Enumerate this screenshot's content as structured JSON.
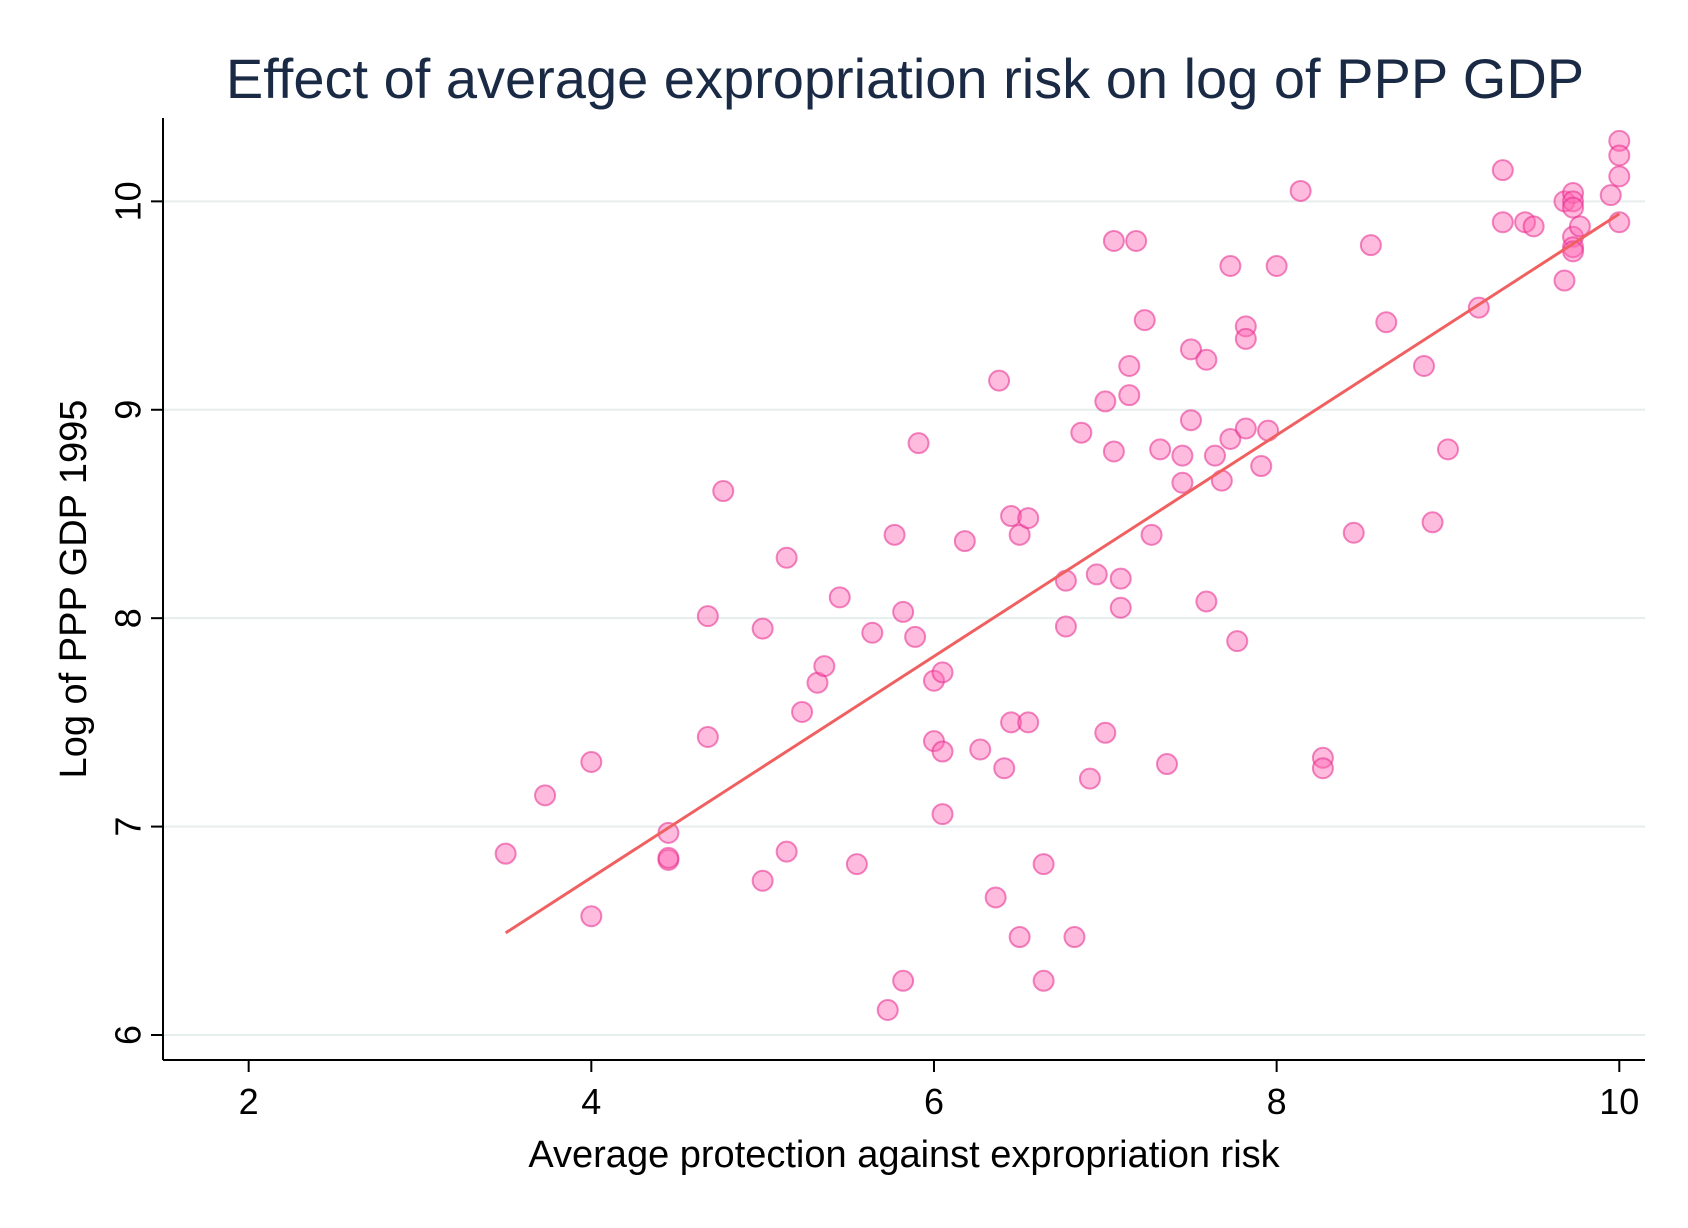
{
  "chart_data": {
    "type": "scatter",
    "title": "Effect of average expropriation risk on log of PPP GDP",
    "xlabel": "Average protection against expropriation risk",
    "ylabel": "Log of PPP GDP 1995",
    "xlim": [
      1.5,
      10.15
    ],
    "ylim": [
      5.88,
      10.4
    ],
    "xticks": [
      "2",
      "4",
      "6",
      "8",
      "10"
    ],
    "yticks": [
      "6",
      "7",
      "8",
      "9",
      "10"
    ],
    "grid": true,
    "colors": {
      "point": "#ff69b4",
      "fit": "#f06060"
    },
    "fit_line": {
      "x": [
        3.5,
        10.0
      ],
      "y": [
        6.49,
        9.94
      ]
    },
    "points": {
      "x": [
        3.5,
        3.73,
        4.0,
        4.0,
        4.45,
        4.45,
        4.45,
        4.68,
        4.68,
        4.77,
        5.0,
        5.0,
        5.14,
        5.14,
        5.23,
        5.32,
        5.36,
        5.45,
        5.55,
        5.64,
        5.73,
        5.77,
        5.82,
        5.82,
        5.89,
        5.91,
        6.0,
        6.0,
        6.05,
        6.05,
        6.05,
        6.18,
        6.27,
        6.36,
        6.38,
        6.41,
        6.45,
        6.45,
        6.5,
        6.5,
        6.55,
        6.55,
        6.64,
        6.64,
        6.77,
        6.77,
        6.82,
        6.86,
        6.91,
        6.95,
        7.0,
        7.0,
        7.05,
        7.05,
        7.09,
        7.09,
        7.14,
        7.14,
        7.18,
        7.23,
        7.27,
        7.32,
        7.36,
        7.45,
        7.45,
        7.5,
        7.5,
        7.59,
        7.59,
        7.64,
        7.68,
        7.73,
        7.73,
        7.77,
        7.82,
        7.82,
        7.82,
        7.91,
        7.95,
        8.0,
        8.14,
        8.27,
        8.27,
        8.45,
        8.55,
        8.64,
        8.86,
        8.91,
        9.0,
        9.18,
        9.32,
        9.32,
        9.45,
        9.5,
        9.68,
        9.68,
        9.73,
        9.73,
        9.73,
        9.73,
        9.73,
        9.73,
        9.77,
        9.95,
        10.0,
        10.0,
        10.0,
        10.0
      ],
      "y": [
        6.87,
        7.15,
        7.31,
        6.57,
        6.97,
        6.84,
        6.85,
        8.01,
        7.43,
        8.61,
        7.95,
        6.74,
        8.29,
        6.88,
        7.55,
        7.69,
        7.77,
        8.1,
        6.82,
        7.93,
        6.12,
        8.4,
        8.03,
        6.26,
        7.91,
        8.84,
        7.7,
        7.41,
        7.74,
        7.36,
        7.06,
        8.37,
        7.37,
        6.66,
        9.14,
        7.28,
        8.49,
        7.5,
        8.4,
        6.47,
        8.48,
        7.5,
        6.82,
        6.26,
        8.18,
        7.96,
        6.47,
        8.89,
        7.23,
        8.21,
        9.04,
        7.45,
        9.81,
        8.8,
        8.19,
        8.05,
        9.21,
        9.07,
        9.81,
        9.43,
        8.4,
        8.81,
        7.3,
        8.78,
        8.65,
        9.29,
        8.95,
        9.24,
        8.08,
        8.78,
        8.66,
        9.69,
        8.86,
        7.89,
        9.4,
        9.34,
        8.91,
        8.73,
        8.9,
        9.69,
        10.05,
        7.33,
        7.28,
        8.41,
        9.79,
        9.42,
        9.21,
        8.46,
        8.81,
        9.49,
        10.15,
        9.9,
        9.9,
        9.88,
        10.0,
        9.62,
        10.04,
        10.0,
        9.97,
        9.83,
        9.78,
        9.76,
        9.88,
        10.03,
        10.29,
        10.22,
        10.12,
        9.9
      ]
    }
  }
}
